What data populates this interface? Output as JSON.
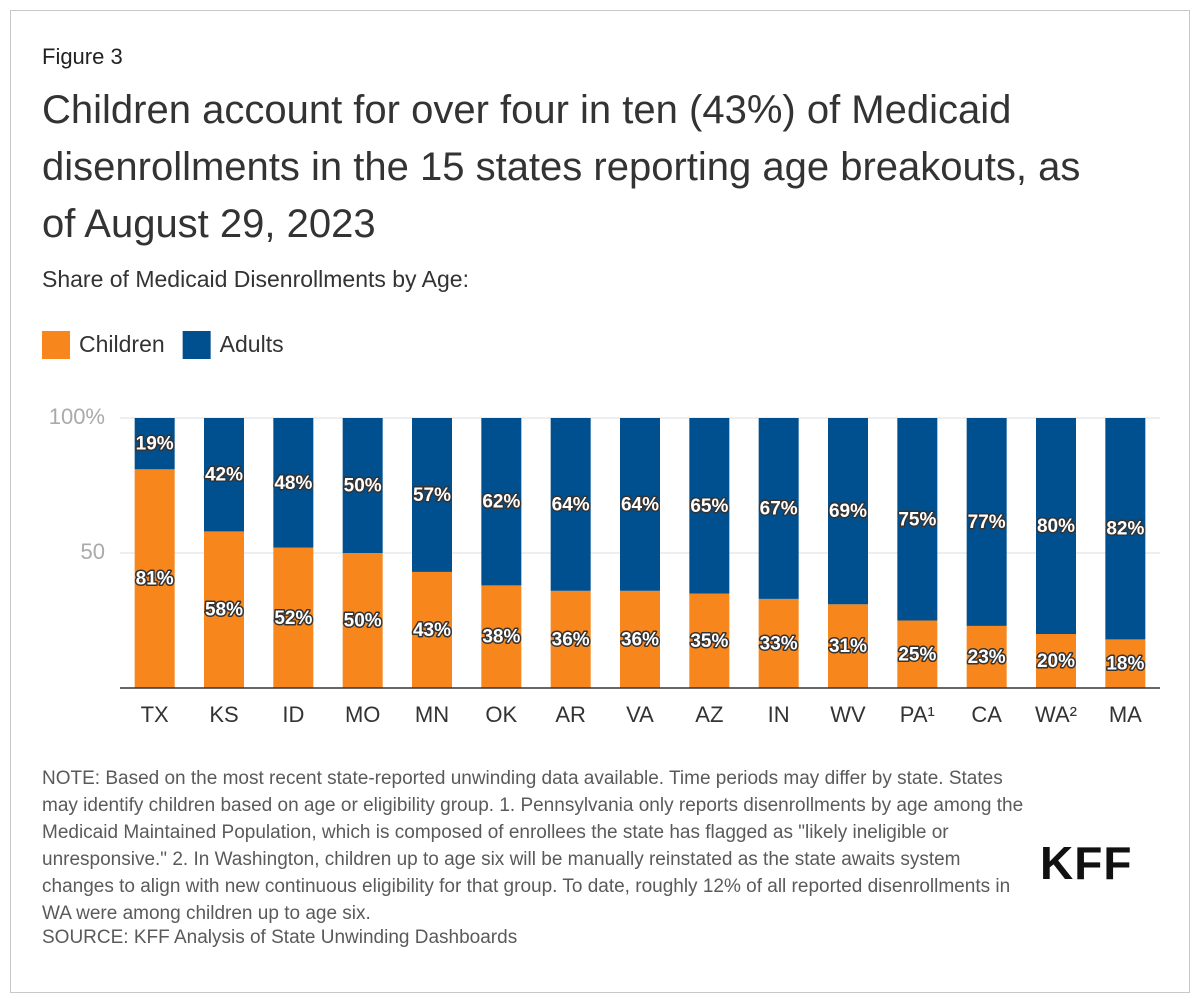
{
  "figure_label": "Figure 3",
  "chart_data": {
    "type": "stacked_bar",
    "title": "Children account for over four in ten (43%) of Medicaid disenrollments in the 15 states reporting age breakouts, as of August 29, 2023",
    "subtitle": "Share of Medicaid Disenrollments by Age:",
    "categories": [
      "TX",
      "KS",
      "ID",
      "MO",
      "MN",
      "OK",
      "AR",
      "VA",
      "AZ",
      "IN",
      "WV",
      "PA¹",
      "CA",
      "WA²",
      "MA"
    ],
    "series": [
      {
        "name": "Children",
        "color": "#f7861d",
        "values": [
          81,
          58,
          52,
          50,
          43,
          38,
          36,
          36,
          35,
          33,
          31,
          25,
          23,
          20,
          18
        ],
        "value_labels": [
          "81%",
          "58%",
          "52%",
          "50%",
          "43%",
          "38%",
          "36%",
          "36%",
          "35%",
          "33%",
          "31%",
          "25%",
          "23%",
          "20%",
          "18%"
        ]
      },
      {
        "name": "Adults",
        "color": "#00508f",
        "values": [
          19,
          42,
          48,
          50,
          57,
          62,
          64,
          64,
          65,
          67,
          69,
          75,
          77,
          80,
          82
        ],
        "value_labels": [
          "19%",
          "42%",
          "48%",
          "50%",
          "57%",
          "62%",
          "64%",
          "64%",
          "65%",
          "67%",
          "69%",
          "75%",
          "77%",
          "80%",
          "82%"
        ]
      }
    ],
    "ylim": [
      0,
      100
    ],
    "yticks": [
      50,
      {
        "value": 100,
        "label": "100%"
      }
    ],
    "grid": true
  },
  "note": "NOTE: Based on the most recent state-reported unwinding data available. Time periods may differ by state. States may identify children based on age or eligibility group. 1. Pennsylvania only reports disenrollments by age among the Medicaid Maintained Population, which is composed of enrollees the state has flagged as \"likely ineligible or unresponsive.\" 2. In Washington, children up to age six will be manually reinstated as the state awaits system changes to align with new continuous eligibility for that group. To date, roughly 12% of all reported disenrollments in WA were among children up to age six.",
  "source": "SOURCE: KFF Analysis of State Unwinding Dashboards",
  "logo": "KFF"
}
